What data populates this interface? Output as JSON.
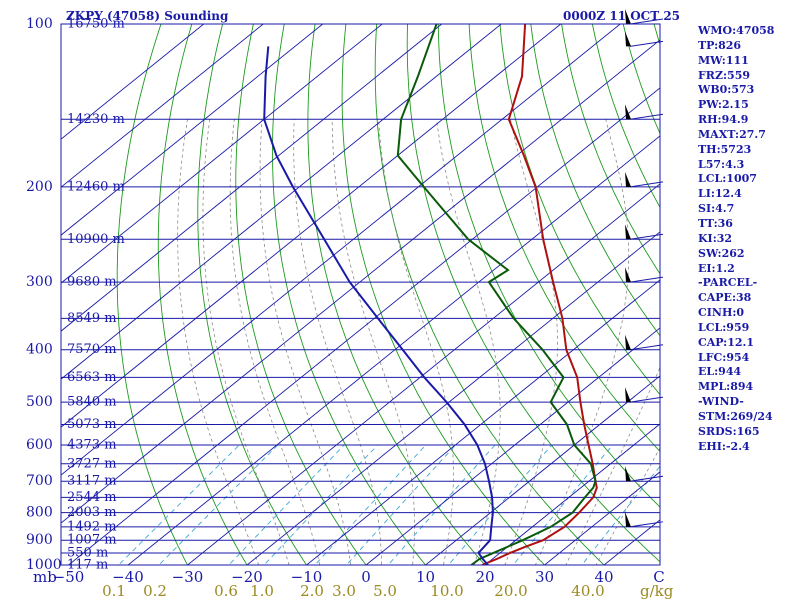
{
  "title": {
    "station": "ZKPY (47058) Sounding",
    "time": "0000Z 11 OCT 25"
  },
  "indices": [
    "WMO:47058",
    "TP:826",
    "MW:111",
    "FRZ:559",
    "WB0:573",
    "PW:2.15",
    "RH:94.9",
    "MAXT:27.7",
    "TH:5723",
    "L57:4.3",
    "LCL:1007",
    "LI:12.4",
    "SI:4.7",
    "TT:36",
    "KI:32",
    "SW:262",
    "EI:1.2",
    "-PARCEL-",
    "CAPE:38",
    "CINH:0",
    "LCL:959",
    "CAP:12.1",
    "LFC:954",
    "EL:944",
    "MPL:894",
    "-WIND-",
    "STM:269/24",
    "SRDS:165",
    "EHI:-2.4"
  ],
  "colors": {
    "isobar": "#1a1aa8",
    "isotherm": "#1a1aa8",
    "dry_adiabat": "#1e9a1e",
    "moist_adiabat": "#8a8a8a",
    "mixing_ratio": "#40a8d8",
    "temperature": "#b01010",
    "dewpoint": "#0a5a0a",
    "parcel": "#1a1aa8",
    "label_blue": "#1a1aa8",
    "label_olive": "#9a8a20"
  },
  "chart_data": {
    "type": "line",
    "chart_kind": "skew-T log-P sounding",
    "pressure_axis": {
      "scale": "log",
      "unit": "hPa",
      "range": [
        1000,
        100
      ],
      "tick_labels": [
        "100",
        "200",
        "300",
        "400",
        "500",
        "600",
        "700",
        "800",
        "900",
        "1000"
      ],
      "unit_label": "mb"
    },
    "temperature_axis": {
      "unit": "C",
      "range": [
        -50,
        50
      ],
      "tick_labels": [
        "−50",
        "−40",
        "−30",
        "−20",
        "−10",
        "0",
        "10",
        "20",
        "30",
        "40",
        "C"
      ]
    },
    "mixing_ratio_axis": {
      "unit_label": "g/kg",
      "tick_labels": [
        "0.1",
        "0.2",
        "0.6",
        "1.0",
        "2.0",
        "3.0",
        "5.0",
        "10.0",
        "20.0",
        "40.0"
      ]
    },
    "height_labels": [
      {
        "p": 100,
        "text": "16750 m"
      },
      {
        "p": 150,
        "text": "14230 m"
      },
      {
        "p": 200,
        "text": "12460 m"
      },
      {
        "p": 250,
        "text": "10900 m"
      },
      {
        "p": 300,
        "text": "9680 m"
      },
      {
        "p": 350,
        "text": "8549 m"
      },
      {
        "p": 400,
        "text": "7570 m"
      },
      {
        "p": 450,
        "text": "6563 m"
      },
      {
        "p": 500,
        "text": "5840 m"
      },
      {
        "p": 550,
        "text": "5073 m"
      },
      {
        "p": 600,
        "text": "4373 m"
      },
      {
        "p": 650,
        "text": "3727 m"
      },
      {
        "p": 700,
        "text": "3117 m"
      },
      {
        "p": 750,
        "text": "2544 m"
      },
      {
        "p": 800,
        "text": "2003 m"
      },
      {
        "p": 850,
        "text": "1492 m"
      },
      {
        "p": 900,
        "text": "1007 m"
      },
      {
        "p": 950,
        "text": "550 m"
      },
      {
        "p": 1000,
        "text": "117 m"
      }
    ],
    "series": [
      {
        "name": "Temperature",
        "points": [
          {
            "p": 1000,
            "t": 19.5
          },
          {
            "p": 975,
            "t": 20.7
          },
          {
            "p": 950,
            "t": 21.7
          },
          {
            "p": 925,
            "t": 23.0
          },
          {
            "p": 900,
            "t": 24.6
          },
          {
            "p": 850,
            "t": 25.4
          },
          {
            "p": 800,
            "t": 24.9
          },
          {
            "p": 750,
            "t": 24.1
          },
          {
            "p": 720,
            "t": 22.7
          },
          {
            "p": 700,
            "t": 21.1
          },
          {
            "p": 650,
            "t": 17.0
          },
          {
            "p": 600,
            "t": 12.4
          },
          {
            "p": 550,
            "t": 7.4
          },
          {
            "p": 500,
            "t": 2.1
          },
          {
            "p": 450,
            "t": -3.6
          },
          {
            "p": 400,
            "t": -11.2
          },
          {
            "p": 350,
            "t": -18.4
          },
          {
            "p": 300,
            "t": -27.5
          },
          {
            "p": 250,
            "t": -38.1
          },
          {
            "p": 200,
            "t": -50.3
          },
          {
            "p": 175,
            "t": -58.8
          },
          {
            "p": 150,
            "t": -68.9
          },
          {
            "p": 125,
            "t": -75.6
          },
          {
            "p": 100,
            "t": -86.0
          }
        ]
      },
      {
        "name": "Dewpoint",
        "points": [
          {
            "p": 1000,
            "t": 17.7
          },
          {
            "p": 975,
            "t": 17.8
          },
          {
            "p": 950,
            "t": 18.9
          },
          {
            "p": 900,
            "t": 21.2
          },
          {
            "p": 850,
            "t": 23.1
          },
          {
            "p": 800,
            "t": 23.8
          },
          {
            "p": 750,
            "t": 22.7
          },
          {
            "p": 720,
            "t": 22.1
          },
          {
            "p": 700,
            "t": 21.1
          },
          {
            "p": 650,
            "t": 16.7
          },
          {
            "p": 600,
            "t": 10.0
          },
          {
            "p": 550,
            "t": 4.5
          },
          {
            "p": 500,
            "t": -2.9
          },
          {
            "p": 450,
            "t": -5.9
          },
          {
            "p": 400,
            "t": -15.2
          },
          {
            "p": 350,
            "t": -26.6
          },
          {
            "p": 300,
            "t": -38.3
          },
          {
            "p": 285,
            "t": -37.6
          },
          {
            "p": 250,
            "t": -50.7
          },
          {
            "p": 200,
            "t": -69.1
          },
          {
            "p": 175,
            "t": -80.0
          },
          {
            "p": 150,
            "t": -87.0
          },
          {
            "p": 125,
            "t": -93.1
          },
          {
            "p": 100,
            "t": -100.9
          }
        ]
      },
      {
        "name": "Parcel",
        "points": [
          {
            "p": 1000,
            "t": 20.5
          },
          {
            "p": 975,
            "t": 18.4
          },
          {
            "p": 950,
            "t": 16.4
          },
          {
            "p": 900,
            "t": 15.7
          },
          {
            "p": 850,
            "t": 13.1
          },
          {
            "p": 800,
            "t": 10.4
          },
          {
            "p": 750,
            "t": 7.1
          },
          {
            "p": 700,
            "t": 3.2
          },
          {
            "p": 650,
            "t": -1.1
          },
          {
            "p": 600,
            "t": -6.3
          },
          {
            "p": 550,
            "t": -12.7
          },
          {
            "p": 500,
            "t": -20.4
          },
          {
            "p": 450,
            "t": -29.3
          },
          {
            "p": 400,
            "t": -38.7
          },
          {
            "p": 350,
            "t": -49.4
          },
          {
            "p": 300,
            "t": -61.7
          },
          {
            "p": 250,
            "t": -74.9
          },
          {
            "p": 200,
            "t": -91.1
          },
          {
            "p": 175,
            "t": -100.4
          },
          {
            "p": 150,
            "t": -110.0
          },
          {
            "p": 125,
            "t": -118.7
          },
          {
            "p": 110,
            "t": -124.5
          }
        ]
      }
    ],
    "wind_barbs": [
      {
        "p": 100
      },
      {
        "p": 110
      },
      {
        "p": 150
      },
      {
        "p": 200
      },
      {
        "p": 250
      },
      {
        "p": 300
      },
      {
        "p": 400
      },
      {
        "p": 500
      },
      {
        "p": 700
      },
      {
        "p": 850
      }
    ]
  }
}
